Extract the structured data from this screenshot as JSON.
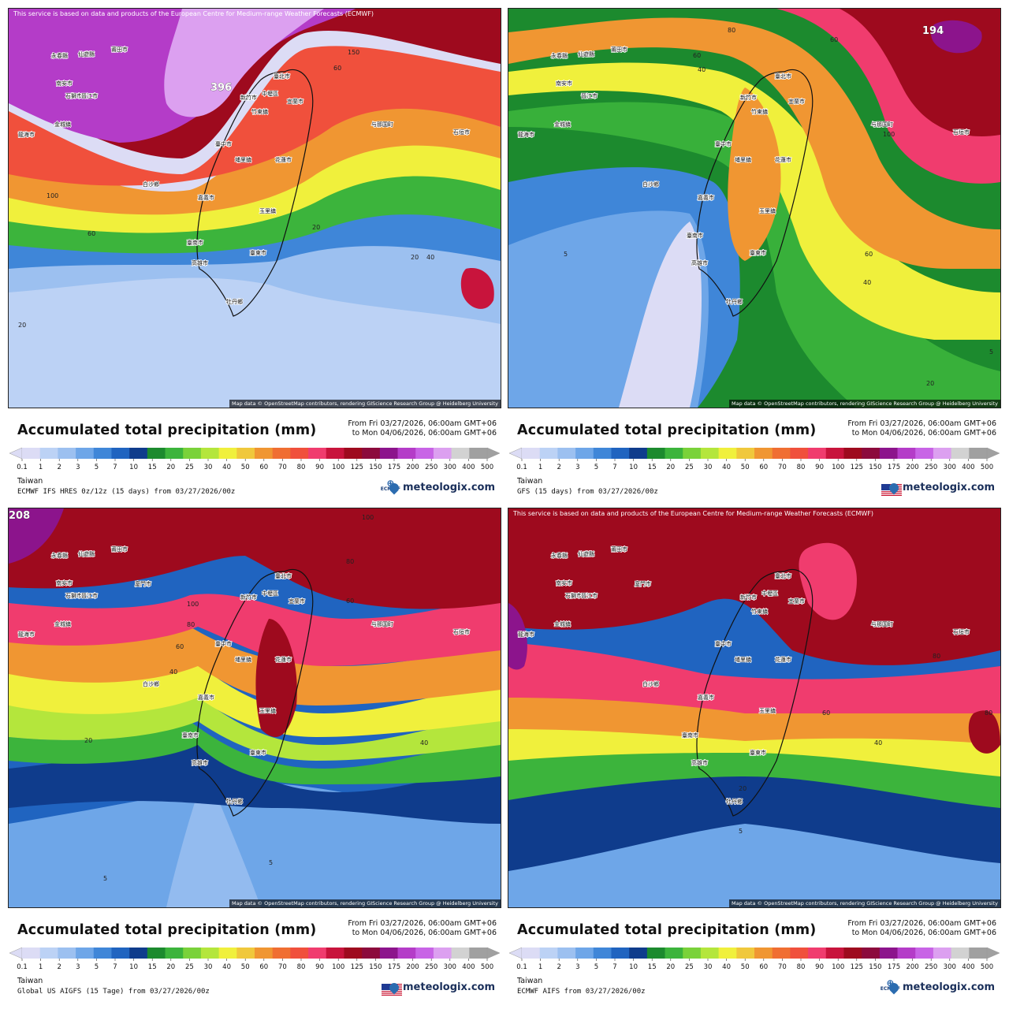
{
  "legend": {
    "ticks": [
      "0.1",
      "1",
      "2",
      "3",
      "5",
      "7",
      "10",
      "15",
      "20",
      "25",
      "30",
      "40",
      "50",
      "60",
      "70",
      "80",
      "90",
      "100",
      "125",
      "150",
      "175",
      "200",
      "250",
      "300",
      "400",
      "500"
    ],
    "colors": [
      "#dcdcf5",
      "#bcd2f5",
      "#9cc0f0",
      "#6ea6e8",
      "#3f86d8",
      "#2064c0",
      "#0f3c8c",
      "#1c8a2e",
      "#3cb43c",
      "#7ad23a",
      "#b4e63c",
      "#f0f03c",
      "#f0c83c",
      "#f09632",
      "#f06e32",
      "#f0503c",
      "#f03c6e",
      "#c8143c",
      "#9e0a1e",
      "#8c0a3c",
      "#8c148c",
      "#b43cc8",
      "#c864e6",
      "#dca0f0",
      "#d2d2d2",
      "#a0a0a0"
    ]
  },
  "common": {
    "title": "Accumulated total precipitation (mm)",
    "period_from": "From Fri 03/27/2026, 06:00am GMT+06",
    "period_to": "to Mon 04/06/2026, 06:00am GMT+06",
    "region": "Taiwan",
    "brand": "meteologix.com",
    "credit": "Map data © OpenStreetMap contributors, rendering GIScience Research Group @ Heidelberg University",
    "ecmwf_notice": "This service is based on data and products of the European Centre for Medium-range Weather Forecasts (ECMWF)",
    "ecmwf_badge": "ECMWF"
  },
  "cities": [
    "彭佳嶼",
    "臺北市",
    "新竹市",
    "中壢區",
    "竹東鎮",
    "宜蘭市",
    "臺中市",
    "埔里鎮",
    "花蓮市",
    "嘉義市",
    "玉里鎮",
    "臺南市",
    "高雄市",
    "臺東市",
    "牡丹鄉",
    "白沙鄉",
    "龍海市",
    "金城鎮",
    "廈門市",
    "石獅市",
    "莆田市",
    "仙遊縣",
    "永春縣",
    "南安市",
    "晉江市",
    "石垣市",
    "与那国町"
  ],
  "panels": [
    {
      "model": "ECMWF IFS HRES 0z/12z (15 days) from  03/27/2026/00z",
      "max_label": "396",
      "logo": "ecmwf",
      "show_notice": true,
      "contours": [
        "150",
        "60",
        "20",
        "20",
        "40",
        "100",
        "60",
        "20"
      ]
    },
    {
      "model": "GFS (15 days) from  03/27/2026/00z",
      "max_label": "194",
      "logo": "us",
      "show_notice": false,
      "contours": [
        "80",
        "60",
        "60",
        "40",
        "100",
        "5",
        "60",
        "40",
        "20",
        "5"
      ]
    },
    {
      "model": "Global US AIGFS (15 Tage) from  03/27/2026/00z",
      "max_label": "208",
      "logo": "us",
      "show_notice": false,
      "contours": [
        "100",
        "80",
        "60",
        "100",
        "80",
        "60",
        "40",
        "20",
        "40",
        "5",
        "5"
      ]
    },
    {
      "model": "ECMWF AIFS from  03/27/2026/00z",
      "max_label": "",
      "logo": "ecmwf",
      "show_notice": true,
      "contours": [
        "80",
        "60",
        "40",
        "20",
        "5",
        "80"
      ]
    }
  ]
}
